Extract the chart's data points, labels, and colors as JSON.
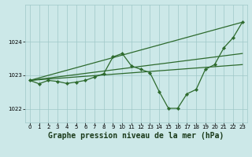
{
  "background_color": "#cce8e8",
  "grid_color": "#9fc8c8",
  "line_color": "#2d6a2d",
  "marker_color": "#2d6a2d",
  "title": "Graphe pression niveau de la mer (hPa)",
  "xlim": [
    -0.5,
    23.5
  ],
  "ylim": [
    1021.6,
    1025.1
  ],
  "yticks": [
    1022,
    1023,
    1024
  ],
  "xticks": [
    0,
    1,
    2,
    3,
    4,
    5,
    6,
    7,
    8,
    9,
    10,
    11,
    12,
    13,
    14,
    15,
    16,
    17,
    18,
    19,
    20,
    21,
    22,
    23
  ],
  "y_main": [
    1022.85,
    1022.75,
    1022.85,
    1022.82,
    1022.76,
    1022.8,
    1022.85,
    1022.95,
    1023.05,
    1023.55,
    1023.65,
    1023.28,
    1023.18,
    1023.08,
    1022.52,
    1022.02,
    1022.02,
    1022.45,
    1022.58,
    1023.18,
    1023.32,
    1023.82,
    1024.12,
    1024.58
  ],
  "straight_lines": [
    {
      "x0": 0,
      "y0": 1022.85,
      "x1": 23,
      "y1": 1024.58
    },
    {
      "x0": 0,
      "y0": 1022.85,
      "x1": 23,
      "y1": 1023.32
    },
    {
      "x0": 0,
      "y0": 1022.85,
      "x1": 23,
      "y1": 1023.65
    }
  ],
  "title_fontsize": 7.0,
  "tick_fontsize": 5.0,
  "lw": 0.9,
  "ms": 2.2
}
